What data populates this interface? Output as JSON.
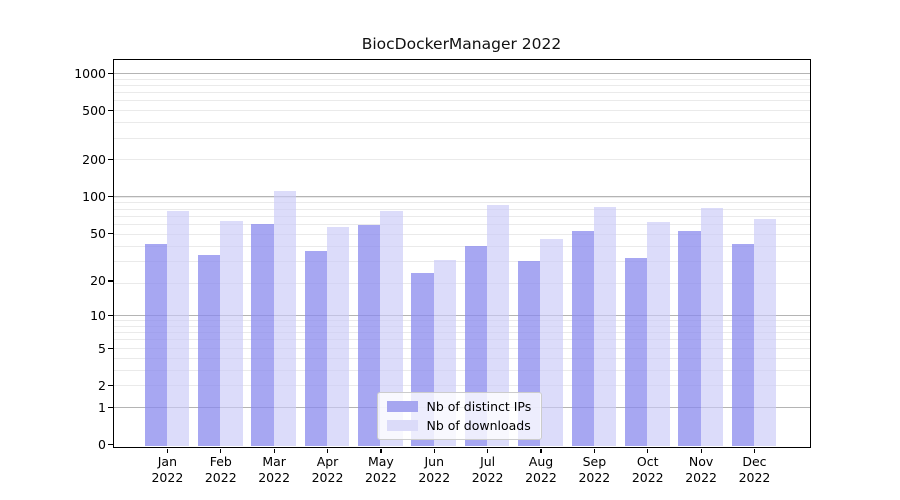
{
  "title": "BiocDockerManager 2022",
  "chart_data": {
    "type": "bar",
    "title": "BiocDockerManager 2022",
    "categories": [
      "Jan",
      "Feb",
      "Mar",
      "Apr",
      "May",
      "Jun",
      "Jul",
      "Aug",
      "Sep",
      "Oct",
      "Nov",
      "Dec"
    ],
    "category_year": "2022",
    "series": [
      {
        "name": "Nb of distinct IPs",
        "swatch_color": "#a6a6f0",
        "fill_color": "#8989ee",
        "fill_alpha": 0.75,
        "values": [
          40,
          33,
          59,
          35,
          58,
          23,
          39,
          29,
          52,
          31,
          52,
          40
        ]
      },
      {
        "name": "Nb of downloads",
        "swatch_color": "#dbdbf9",
        "fill_color": "#cacaf7",
        "fill_alpha": 0.65,
        "values": [
          75,
          63,
          110,
          56,
          76,
          30,
          85,
          44,
          82,
          61,
          80,
          65
        ]
      }
    ],
    "y_axis": {
      "scale": "log10(1+v)",
      "tick_values": [
        1000,
        500,
        200,
        100,
        50,
        20,
        10,
        5,
        2,
        1,
        0
      ],
      "ylim": [
        0,
        1280
      ]
    },
    "grid": {
      "major_on": true,
      "minor_on": true,
      "major_color": "#b4b4b4",
      "minor_color": "#eaeaea"
    },
    "legend": {
      "position": "bottom-center",
      "entries": [
        "Nb of distinct IPs",
        "Nb of downloads"
      ]
    },
    "xlabel": "",
    "ylabel": ""
  }
}
